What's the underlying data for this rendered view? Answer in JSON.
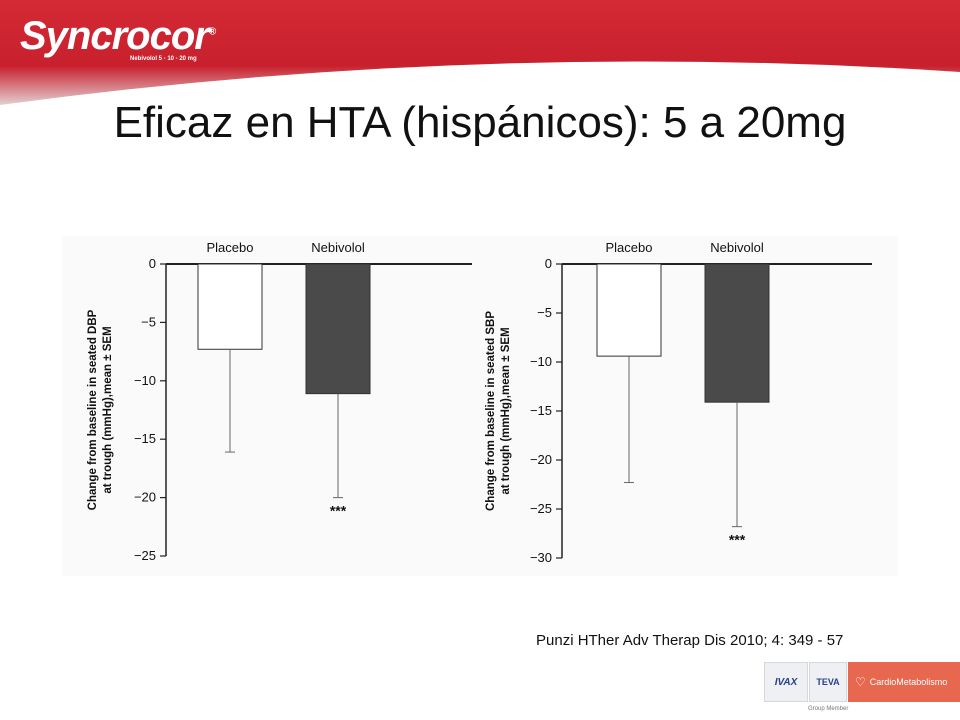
{
  "header": {
    "brand": "Syncrocor",
    "brand_mark": "®",
    "brand_sub": "Nebivolol 5 - 10 - 20 mg"
  },
  "slide_title": "Eficaz en HTA (hispánicos): 5 a 20mg",
  "citation": "Punzi HTher Adv Therap Dis 2010; 4: 349 - 57",
  "footer": {
    "logo_ivax": "IVAX",
    "logo_teva": "TEVA",
    "logo_cardio": "CardioMetabolismo",
    "group_member": "Group Member"
  },
  "colors": {
    "header_red": "#c8202d",
    "placebo_fill": "#ffffff",
    "nebivolol_fill": "#4a4a4a",
    "cardio_orange": "#e8674f"
  },
  "chart_data": [
    {
      "type": "bar",
      "categories": [
        "Placebo",
        "Nebivolol"
      ],
      "values": [
        -7.3,
        -11.1
      ],
      "errors": [
        8.8,
        8.9
      ],
      "bar_colors": [
        "#ffffff",
        "#4a4a4a"
      ],
      "ylabel": "Change from baseline in seated DBP at trough (mmHg),mean ± SEM",
      "ylim": [
        -25,
        0
      ],
      "yticks": [
        0,
        -5,
        -10,
        -15,
        -20,
        -25
      ],
      "ytick_labels": [
        "0",
        "−5",
        "−10",
        "−15",
        "−20",
        "−25"
      ],
      "annotations": [
        {
          "category": "Nebivolol",
          "text": "***"
        }
      ]
    },
    {
      "type": "bar",
      "categories": [
        "Placebo",
        "Nebivolol"
      ],
      "values": [
        -9.4,
        -14.1
      ],
      "errors": [
        12.9,
        12.7
      ],
      "bar_colors": [
        "#ffffff",
        "#4a4a4a"
      ],
      "ylabel": "Change from baseline in seated SBP at trough (mmHg),mean ± SEM",
      "ylim": [
        -30,
        0
      ],
      "yticks": [
        0,
        -5,
        -10,
        -15,
        -20,
        -25,
        -30
      ],
      "ytick_labels": [
        "0",
        "−5",
        "−10",
        "−15",
        "−20",
        "−25",
        "−30"
      ],
      "annotations": [
        {
          "category": "Nebivolol",
          "text": "***"
        }
      ]
    }
  ]
}
